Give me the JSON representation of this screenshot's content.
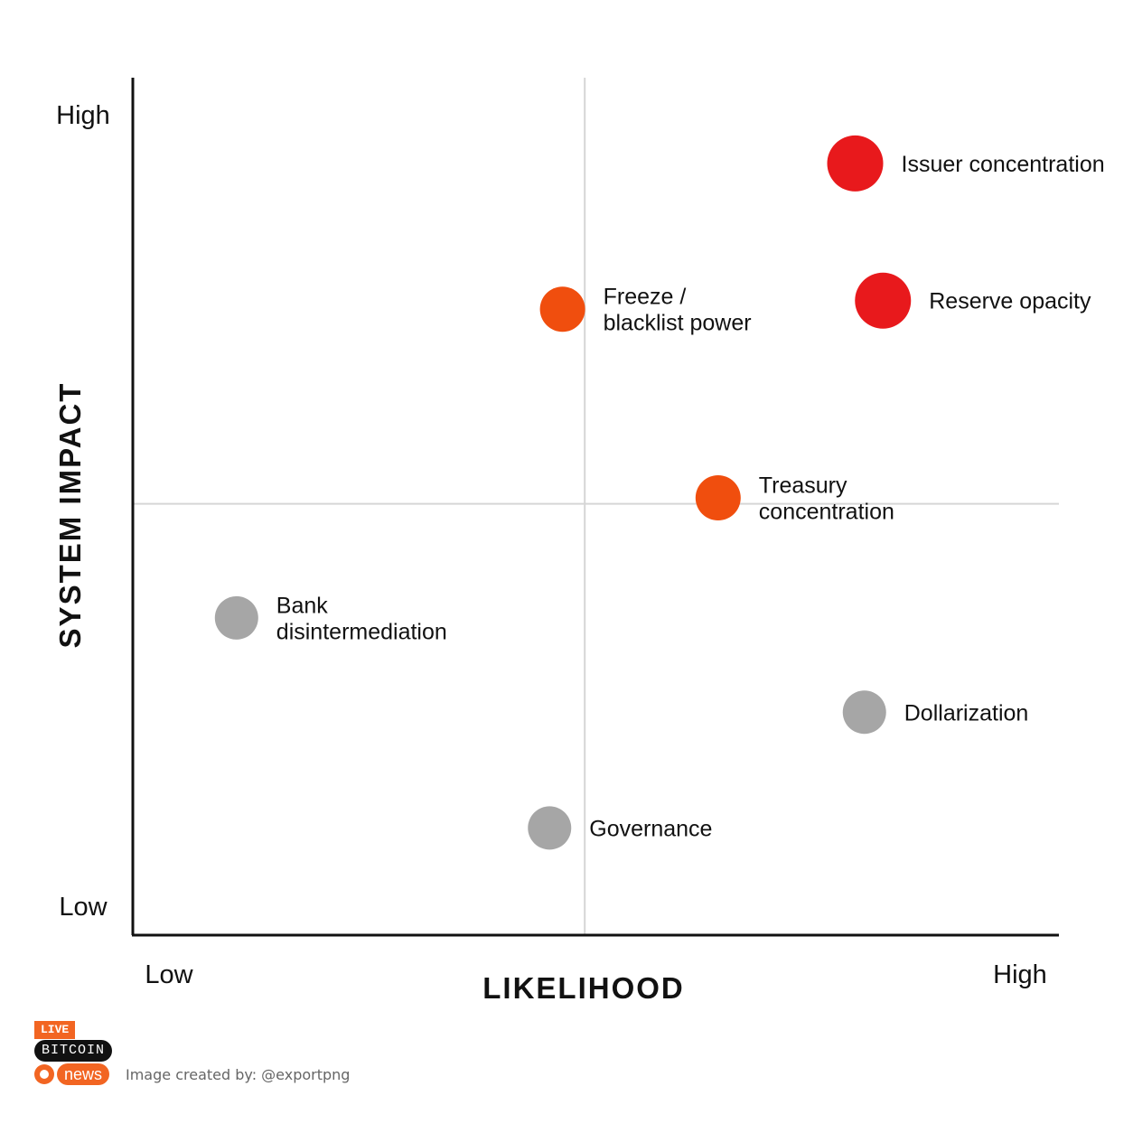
{
  "chart_data": {
    "type": "scatter",
    "title": "",
    "xlabel": "LIKELIHOOD",
    "ylabel": "SYSTEM IMPACT",
    "x_tick_labels": [
      "Low",
      "High"
    ],
    "y_tick_labels": [
      "High",
      "Low"
    ],
    "xlim": [
      0,
      10
    ],
    "ylim": [
      0,
      10
    ],
    "quadrant_lines": {
      "x": 4.88,
      "y": 5.03
    },
    "grid": false,
    "legend": "none",
    "points": [
      {
        "label": "Issuer concentration",
        "x": 7.8,
        "y": 9.0,
        "size": "large",
        "color": "#e8191c"
      },
      {
        "label": "Reserve opacity",
        "x": 8.1,
        "y": 7.4,
        "size": "large",
        "color": "#e8191c"
      },
      {
        "label": "Freeze / blacklist power",
        "x": 4.64,
        "y": 7.3,
        "size": "medium",
        "color": "#f04e0e"
      },
      {
        "label": "Treasury concentration",
        "x": 6.32,
        "y": 5.1,
        "size": "medium",
        "color": "#f04e0e"
      },
      {
        "label": "Bank disintermediation",
        "x": 1.12,
        "y": 3.7,
        "size": "small",
        "color": "#a6a6a6"
      },
      {
        "label": "Dollarization",
        "x": 7.9,
        "y": 2.6,
        "size": "small",
        "color": "#a6a6a6"
      },
      {
        "label": "Governance",
        "x": 4.5,
        "y": 1.25,
        "size": "small",
        "color": "#a6a6a6"
      }
    ]
  },
  "logo": {
    "line1": "LIVE",
    "line2": "BITCOIN",
    "line3": "news"
  },
  "credit": "Image created by: @exportpng"
}
